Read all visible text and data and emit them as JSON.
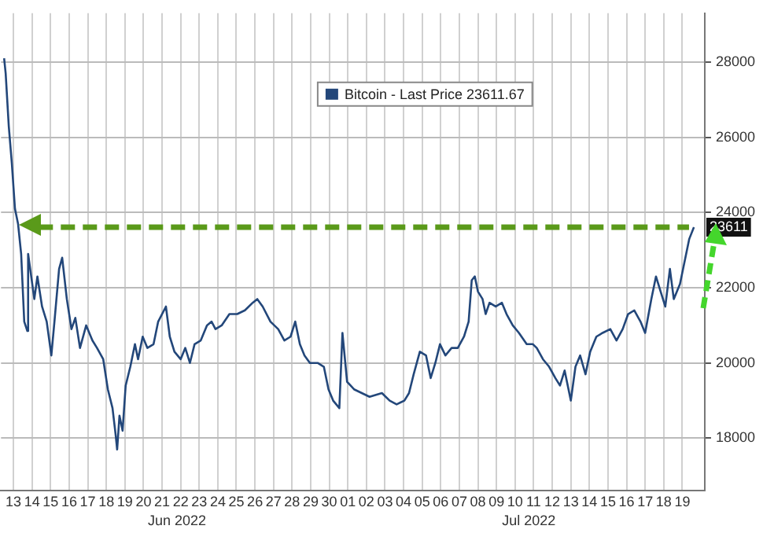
{
  "chart_data": {
    "type": "line",
    "x": [
      "2022-06-13T00:00",
      "2022-06-13T02:00",
      "2022-06-13T06:00",
      "2022-06-13T10:00",
      "2022-06-13T14:00",
      "2022-06-13T18:00",
      "2022-06-13T22:00",
      "2022-06-14T02:00",
      "2022-06-14T06:00",
      "2022-06-14T07:00",
      "2022-06-14T11:00",
      "2022-06-14T15:00",
      "2022-06-14T19:00",
      "2022-06-15T01:00",
      "2022-06-15T07:00",
      "2022-06-15T13:00",
      "2022-06-15T17:00",
      "2022-06-15T23:00",
      "2022-06-16T03:00",
      "2022-06-16T09:00",
      "2022-06-16T15:00",
      "2022-06-16T20:00",
      "2022-06-17T02:00",
      "2022-06-17T10:00",
      "2022-06-17T18:00",
      "2022-06-18T00:00",
      "2022-06-18T08:00",
      "2022-06-18T14:00",
      "2022-06-18T20:00",
      "2022-06-19T00:00",
      "2022-06-19T02:00",
      "2022-06-19T05:00",
      "2022-06-19T09:00",
      "2022-06-19T13:00",
      "2022-06-19T19:00",
      "2022-06-20T01:00",
      "2022-06-20T05:00",
      "2022-06-20T11:00",
      "2022-06-20T17:00",
      "2022-06-21T01:00",
      "2022-06-21T07:00",
      "2022-06-21T17:00",
      "2022-06-21T22:00",
      "2022-06-22T04:00",
      "2022-06-22T12:00",
      "2022-06-22T18:00",
      "2022-06-23T00:00",
      "2022-06-23T06:00",
      "2022-06-23T14:00",
      "2022-06-23T22:00",
      "2022-06-24T04:00",
      "2022-06-24T09:00",
      "2022-06-24T17:00",
      "2022-06-25T03:00",
      "2022-06-25T13:00",
      "2022-06-25T23:00",
      "2022-06-26T09:00",
      "2022-06-26T15:00",
      "2022-06-26T22:00",
      "2022-06-27T08:00",
      "2022-06-27T18:00",
      "2022-06-28T02:00",
      "2022-06-28T10:00",
      "2022-06-28T16:00",
      "2022-06-28T22:00",
      "2022-06-29T04:00",
      "2022-06-29T11:00",
      "2022-06-29T21:00",
      "2022-06-30T05:00",
      "2022-06-30T11:00",
      "2022-06-30T17:00",
      "2022-07-01T01:00",
      "2022-07-01T05:00",
      "2022-07-01T11:00",
      "2022-07-01T20:00",
      "2022-07-02T06:00",
      "2022-07-02T16:00",
      "2022-07-03T08:00",
      "2022-07-03T18:00",
      "2022-07-04T03:00",
      "2022-07-04T13:00",
      "2022-07-04T19:00",
      "2022-07-05T01:00",
      "2022-07-05T09:00",
      "2022-07-05T17:00",
      "2022-07-05T23:00",
      "2022-07-06T05:00",
      "2022-07-06T11:00",
      "2022-07-06T18:00",
      "2022-07-07T02:00",
      "2022-07-07T10:00",
      "2022-07-07T18:00",
      "2022-07-08T00:00",
      "2022-07-08T04:00",
      "2022-07-08T08:00",
      "2022-07-08T12:00",
      "2022-07-08T18:00",
      "2022-07-08T22:00",
      "2022-07-09T03:00",
      "2022-07-09T11:00",
      "2022-07-09T19:00",
      "2022-07-10T01:00",
      "2022-07-10T09:00",
      "2022-07-10T17:00",
      "2022-07-11T03:00",
      "2022-07-11T11:00",
      "2022-07-11T16:00",
      "2022-07-12T00:00",
      "2022-07-12T08:00",
      "2022-07-12T16:00",
      "2022-07-12T22:00",
      "2022-07-13T04:00",
      "2022-07-13T12:00",
      "2022-07-13T18:00",
      "2022-07-14T00:00",
      "2022-07-14T07:00",
      "2022-07-14T13:00",
      "2022-07-14T21:00",
      "2022-07-15T05:00",
      "2022-07-15T15:00",
      "2022-07-15T23:00",
      "2022-07-16T07:00",
      "2022-07-16T14:00",
      "2022-07-16T22:00",
      "2022-07-17T06:00",
      "2022-07-17T12:00",
      "2022-07-17T20:00",
      "2022-07-18T02:00",
      "2022-07-18T08:00",
      "2022-07-18T14:00",
      "2022-07-18T20:00",
      "2022-07-19T01:00",
      "2022-07-19T09:00",
      "2022-07-19T15:00",
      "2022-07-19T21:00",
      "2022-07-20T03:00"
    ],
    "series": [
      {
        "name": "Bitcoin - Last Price 23611.67",
        "color": "#23477a",
        "values": [
          28100,
          27700,
          26300,
          25300,
          24100,
          23700,
          22900,
          21100,
          20850,
          22900,
          22300,
          21700,
          22300,
          21500,
          21100,
          20200,
          21100,
          22500,
          22800,
          21700,
          20900,
          21200,
          20400,
          21000,
          20600,
          20400,
          20100,
          19300,
          18800,
          18100,
          17700,
          18600,
          18200,
          19400,
          19900,
          20500,
          20100,
          20700,
          20400,
          20500,
          21100,
          21500,
          20700,
          20300,
          20100,
          20400,
          20000,
          20500,
          20600,
          21000,
          21100,
          20900,
          21000,
          21300,
          21300,
          21400,
          21600,
          21700,
          21500,
          21100,
          20900,
          20600,
          20700,
          21100,
          20500,
          20200,
          20000,
          20000,
          19900,
          19300,
          19000,
          18800,
          20800,
          19500,
          19300,
          19200,
          19100,
          19200,
          19000,
          18900,
          19000,
          19200,
          19700,
          20300,
          20200,
          19600,
          20000,
          20500,
          20200,
          20400,
          20400,
          20700,
          21100,
          22200,
          22300,
          21900,
          21700,
          21300,
          21600,
          21500,
          21600,
          21300,
          21000,
          20800,
          20500,
          20500,
          20400,
          20100,
          19900,
          19600,
          19400,
          19800,
          19000,
          19900,
          20200,
          19700,
          20300,
          20700,
          20800,
          20900,
          20600,
          20900,
          21300,
          21400,
          21100,
          20800,
          21700,
          22300,
          21900,
          21500,
          22500,
          21700,
          22100,
          22700,
          23300,
          23611.67
        ]
      }
    ],
    "xlim": [
      "2022-06-12T20:00",
      "2022-07-20T17:00"
    ],
    "xticks": [
      {
        "value": "2022-06-13T12:00",
        "label": "13"
      },
      {
        "value": "2022-06-14T12:00",
        "label": "14"
      },
      {
        "value": "2022-06-15T12:00",
        "label": "15"
      },
      {
        "value": "2022-06-16T12:00",
        "label": "16"
      },
      {
        "value": "2022-06-17T12:00",
        "label": "17"
      },
      {
        "value": "2022-06-18T12:00",
        "label": "18"
      },
      {
        "value": "2022-06-19T12:00",
        "label": "19"
      },
      {
        "value": "2022-06-20T12:00",
        "label": "20"
      },
      {
        "value": "2022-06-21T12:00",
        "label": "21"
      },
      {
        "value": "2022-06-22T12:00",
        "label": "22"
      },
      {
        "value": "2022-06-23T12:00",
        "label": "23"
      },
      {
        "value": "2022-06-24T12:00",
        "label": "24"
      },
      {
        "value": "2022-06-25T12:00",
        "label": "25"
      },
      {
        "value": "2022-06-26T12:00",
        "label": "26"
      },
      {
        "value": "2022-06-27T12:00",
        "label": "27"
      },
      {
        "value": "2022-06-28T12:00",
        "label": "28"
      },
      {
        "value": "2022-06-29T12:00",
        "label": "29"
      },
      {
        "value": "2022-06-30T12:00",
        "label": "30"
      },
      {
        "value": "2022-07-01T12:00",
        "label": "01"
      },
      {
        "value": "2022-07-02T12:00",
        "label": "02"
      },
      {
        "value": "2022-07-03T12:00",
        "label": "03"
      },
      {
        "value": "2022-07-04T12:00",
        "label": "04"
      },
      {
        "value": "2022-07-05T12:00",
        "label": "05"
      },
      {
        "value": "2022-07-06T12:00",
        "label": "06"
      },
      {
        "value": "2022-07-07T12:00",
        "label": "07"
      },
      {
        "value": "2022-07-08T12:00",
        "label": "08"
      },
      {
        "value": "2022-07-09T12:00",
        "label": "09"
      },
      {
        "value": "2022-07-10T12:00",
        "label": "10"
      },
      {
        "value": "2022-07-11T12:00",
        "label": "11"
      },
      {
        "value": "2022-07-12T12:00",
        "label": "12"
      },
      {
        "value": "2022-07-13T12:00",
        "label": "13"
      },
      {
        "value": "2022-07-14T12:00",
        "label": "14"
      },
      {
        "value": "2022-07-15T12:00",
        "label": "15"
      },
      {
        "value": "2022-07-16T12:00",
        "label": "16"
      },
      {
        "value": "2022-07-17T12:00",
        "label": "17"
      },
      {
        "value": "2022-07-18T12:00",
        "label": "18"
      },
      {
        "value": "2022-07-19T12:00",
        "label": "19"
      }
    ],
    "ylim": [
      16600,
      29300
    ],
    "yticks": [
      18000,
      20000,
      22000,
      24000,
      26000,
      28000
    ],
    "ref_lines": [
      {
        "axis": "y",
        "value": 23611,
        "label": "23611",
        "color": "#5a9a1a",
        "line_style": "dashed"
      }
    ],
    "annotations": [
      "Jun 2022",
      "Jul 2022"
    ],
    "grid": true,
    "legend": "top",
    "marker": "none",
    "line_style": "solid"
  }
}
